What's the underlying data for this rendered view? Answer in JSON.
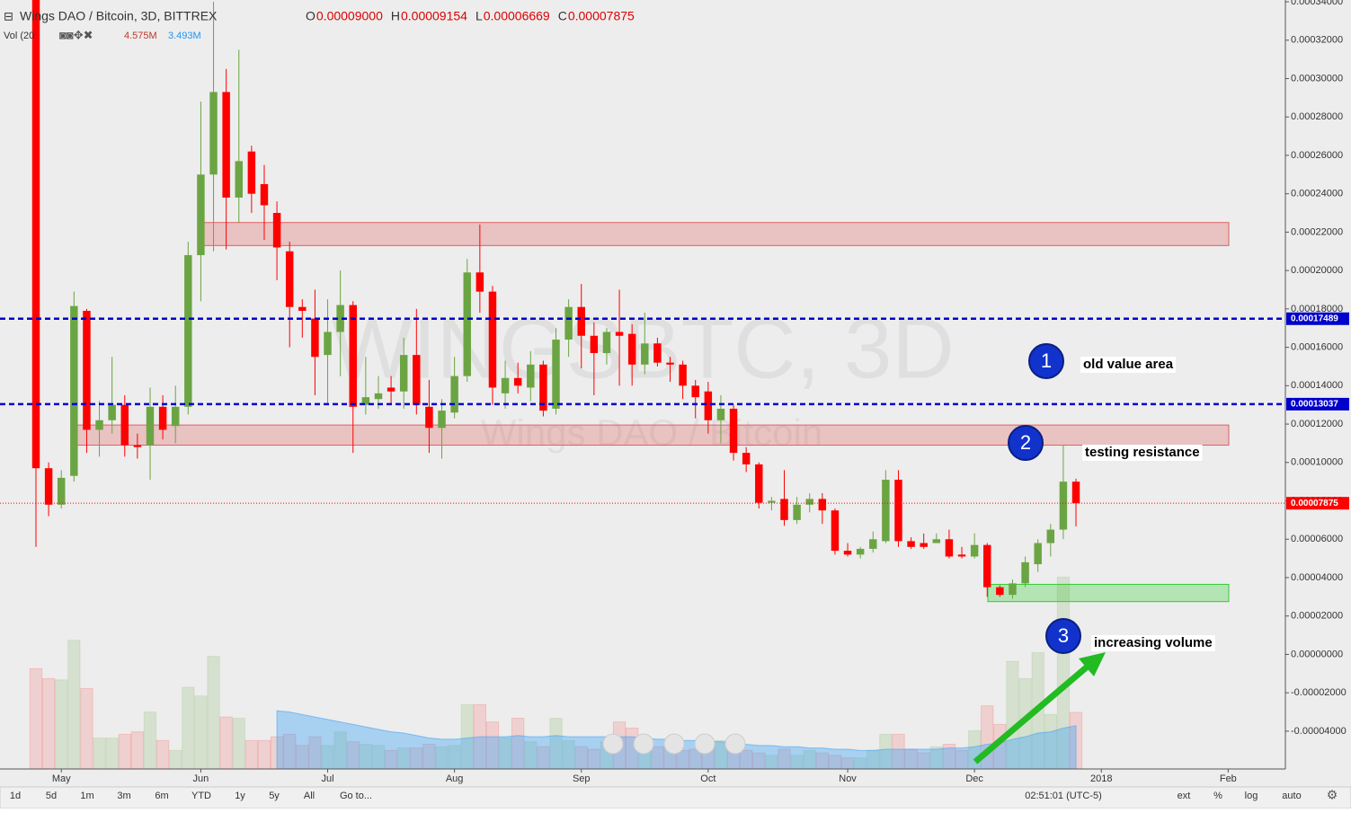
{
  "chart_data": {
    "type": "candlestick",
    "title": "Wings DAO / Bitcoin, 3D, BITTREX",
    "ohlc_header": [
      {
        "key": "O",
        "value": "0.00009000"
      },
      {
        "key": "H",
        "value": "0.00009154"
      },
      {
        "key": "L",
        "value": "0.00006669"
      },
      {
        "key": "C",
        "value": "0.00007875"
      }
    ],
    "volume_header": {
      "label": "Vol (20",
      "values": [
        "4.575M",
        "3.493M"
      ]
    },
    "watermark": [
      "WINGSBTC, 3D",
      "Wings DAO / Bitcoin"
    ],
    "categories": [
      null,
      null,
      "May",
      null,
      null,
      null,
      null,
      null,
      null,
      null,
      null,
      null,
      null,
      "Jun",
      null,
      null,
      null,
      null,
      null,
      null,
      null,
      null,
      null,
      "Jul",
      null,
      null,
      null,
      null,
      null,
      null,
      null,
      null,
      null,
      "Aug",
      null,
      null,
      null,
      null,
      null,
      null,
      null,
      null,
      null,
      "Sep",
      null,
      null,
      null,
      null,
      null,
      null,
      null,
      null,
      null,
      "Oct",
      null,
      null,
      null,
      null,
      null,
      null,
      null,
      null,
      null,
      null,
      "Nov",
      null,
      null,
      null,
      null,
      null,
      null,
      null,
      null,
      null,
      "Dec",
      null,
      null,
      null,
      null,
      null,
      null,
      null,
      null,
      null,
      "2018",
      null,
      null,
      null,
      null,
      null,
      null,
      null,
      null,
      null,
      "Feb",
      null
    ],
    "open": [
      0.0004,
      9.7e-05,
      7.8e-05,
      9.3e-05,
      0.000179,
      0.000117,
      0.000122,
      0.00013,
      0.000109,
      0.000109,
      0.000129,
      0.000119,
      0.000129,
      0.000208,
      0.00025,
      0.000293,
      0.000238,
      0.000262,
      0.000245,
      0.00023,
      0.00021,
      0.000181,
      0.000175,
      0.000156,
      0.000168,
      0.000182,
      0.00013,
      0.000133,
      0.000139,
      0.000137,
      0.000156,
      0.000129,
      0.000118,
      0.000126,
      0.000145,
      0.000199,
      0.000189,
      0.000136,
      0.000144,
      0.000139,
      0.000151,
      0.000128,
      0.000164,
      0.000181,
      0.000166,
      0.000157,
      0.000168,
      0.000167,
      0.000151,
      0.000162,
      0.000152,
      0.000151,
      0.00014,
      0.000137,
      0.000122,
      0.000128,
      0.000105,
      9.9e-05,
      7.9e-05,
      8.1e-05,
      7e-05,
      7.8e-05,
      8.1e-05,
      7.5e-05,
      5.4e-05,
      5.2e-05,
      5.5e-05,
      5.9e-05,
      9.1e-05,
      5.9e-05,
      5.8e-05,
      5.8e-05,
      6e-05,
      5.2e-05,
      5.1e-05,
      5.7e-05,
      3.5e-05,
      3.1e-05,
      3.7e-05,
      4.7e-05,
      5.8e-05,
      6.5e-05,
      9e-05,
      null,
      null,
      null,
      null,
      null,
      null,
      null,
      null,
      null,
      null,
      null,
      null,
      null
    ],
    "high": [
      0.0004,
      0.0001,
      9.6e-05,
      0.000189,
      0.00018,
      0.000132,
      0.000155,
      0.000135,
      0.000115,
      0.000139,
      0.000135,
      0.00014,
      0.000215,
      0.000288,
      0.00034,
      0.000305,
      0.000315,
      0.000265,
      0.000255,
      0.000236,
      0.000215,
      0.000185,
      0.00019,
      0.000185,
      0.0002,
      0.000184,
      0.000155,
      0.000145,
      0.000145,
      0.000165,
      0.00018,
      0.000143,
      0.000133,
      0.000155,
      0.000206,
      0.000224,
      0.000192,
      0.000153,
      0.000152,
      0.000158,
      0.000153,
      0.00017,
      0.000185,
      0.000193,
      0.000173,
      0.00017,
      0.00019,
      0.000172,
      0.000178,
      0.000165,
      0.000155,
      0.000153,
      0.000143,
      0.000142,
      0.000135,
      0.00013,
      0.000108,
      0.0001,
      8.2e-05,
      9.6e-05,
      8.2e-05,
      8.4e-05,
      8.4e-05,
      7.6e-05,
      5.8e-05,
      5.6e-05,
      6.4e-05,
      9.6e-05,
      9.6e-05,
      6.1e-05,
      6.3e-05,
      6.3e-05,
      6.5e-05,
      5.6e-05,
      6.3e-05,
      5.8e-05,
      3.6e-05,
      3.9e-05,
      5.1e-05,
      6e-05,
      6.8e-05,
      0.000109,
      9.154e-05,
      null,
      null,
      null,
      null,
      null,
      null,
      null,
      null,
      null,
      null,
      null,
      null,
      null
    ],
    "low": [
      5.6e-05,
      7.2e-05,
      7.6e-05,
      9e-05,
      0.000105,
      0.000103,
      0.000115,
      0.000103,
      0.000102,
      9.1e-05,
      0.000112,
      0.00011,
      0.000125,
      0.000184,
      0.00021,
      0.000211,
      0.000225,
      0.00023,
      0.000216,
      0.000195,
      0.00016,
      0.000165,
      0.000135,
      0.00013,
      0.000145,
      0.000105,
      0.000125,
      0.000128,
      0.00013,
      0.000128,
      0.000125,
      0.000105,
      0.000102,
      0.000123,
      0.000142,
      0.000178,
      0.00013,
      0.000128,
      0.000136,
      0.000132,
      0.000124,
      0.000125,
      0.000155,
      0.000149,
      0.000135,
      0.000151,
      0.00014,
      0.00014,
      0.000146,
      0.00015,
      0.000142,
      0.000133,
      0.000123,
      0.000115,
      0.00011,
      0.000101,
      9.5e-05,
      7.6e-05,
      7.5e-05,
      6.7e-05,
      6.8e-05,
      7.4e-05,
      6.8e-05,
      5.2e-05,
      5.1e-05,
      5e-05,
      5.3e-05,
      5.8e-05,
      5.6e-05,
      5.5e-05,
      5.5e-05,
      5.8e-05,
      5e-05,
      5e-05,
      5e-05,
      3e-05,
      3e-05,
      2.9e-05,
      3.5e-05,
      4.3e-05,
      5.1e-05,
      6e-05,
      6.669e-05,
      null,
      null,
      null,
      null,
      null,
      null,
      null,
      null,
      null,
      null,
      null,
      null,
      null
    ],
    "close": [
      9.7e-05,
      7.8e-05,
      9.2e-05,
      0.0001815,
      0.000117,
      0.000122,
      0.00013,
      0.000109,
      0.000108,
      0.000129,
      0.000117,
      0.000129,
      0.000208,
      0.00025,
      0.000293,
      0.000238,
      0.000257,
      0.00024,
      0.000234,
      0.000212,
      0.000181,
      0.000179,
      0.000155,
      0.000168,
      0.000182,
      0.000129,
      0.000134,
      0.000136,
      0.000137,
      0.000156,
      0.00013,
      0.000118,
      0.000127,
      0.000145,
      0.000199,
      0.000189,
      0.000139,
      0.000144,
      0.00014,
      0.000151,
      0.000127,
      0.000164,
      0.000181,
      0.000166,
      0.000157,
      0.000168,
      0.000166,
      0.000151,
      0.000162,
      0.000152,
      0.000151,
      0.00014,
      0.000134,
      0.000122,
      0.000128,
      0.000105,
      9.9e-05,
      7.9e-05,
      8e-05,
      7e-05,
      7.8e-05,
      8.1e-05,
      7.5e-05,
      5.4e-05,
      5.2e-05,
      5.5e-05,
      6e-05,
      9.1e-05,
      5.9e-05,
      5.6e-05,
      5.6e-05,
      6e-05,
      5.1e-05,
      5.1e-05,
      5.7e-05,
      3.5e-05,
      3.1e-05,
      3.7e-05,
      4.8e-05,
      5.8e-05,
      6.5e-05,
      9e-05,
      7.875e-05,
      null,
      null,
      null,
      null,
      null,
      null,
      null,
      null,
      null,
      null,
      null,
      null,
      null
    ],
    "volume": [
      8.1,
      7.3,
      7.2,
      10.4,
      6.5,
      2.5,
      2.5,
      2.8,
      3.0,
      4.6,
      2.3,
      1.5,
      6.6,
      5.9,
      9.1,
      4.2,
      4.1,
      2.3,
      2.3,
      2.6,
      2.8,
      1.9,
      2.6,
      1.9,
      3.0,
      2.2,
      2.0,
      1.9,
      1.5,
      1.7,
      1.7,
      2.0,
      1.8,
      1.9,
      5.2,
      5.2,
      3.8,
      2.5,
      4.1,
      2.2,
      1.8,
      4.1,
      2.3,
      1.8,
      1.6,
      2.2,
      3.8,
      3.3,
      2.2,
      1.8,
      1.7,
      1.5,
      1.6,
      2.0,
      2.3,
      1.8,
      1.5,
      1.3,
      1.1,
      1.6,
      1.1,
      1.5,
      1.3,
      1.1,
      0.9,
      0.9,
      1.5,
      2.8,
      2.8,
      1.6,
      1.3,
      1.8,
      2.0,
      1.5,
      3.1,
      5.1,
      3.6,
      8.7,
      7.3,
      9.4,
      4.4,
      15.5,
      4.575,
      null,
      null,
      null,
      null,
      null,
      null,
      null,
      null,
      null,
      null,
      null,
      null,
      null
    ],
    "volume_ma": [
      null,
      null,
      null,
      null,
      null,
      null,
      null,
      null,
      null,
      null,
      null,
      null,
      null,
      null,
      null,
      null,
      null,
      null,
      null,
      4.7,
      4.6,
      4.4,
      4.2,
      4.0,
      3.8,
      3.6,
      3.4,
      3.2,
      3.0,
      2.9,
      2.7,
      2.5,
      2.4,
      2.4,
      2.5,
      2.6,
      2.6,
      2.6,
      2.7,
      2.6,
      2.6,
      2.7,
      2.6,
      2.6,
      2.6,
      2.6,
      2.6,
      2.6,
      2.5,
      2.4,
      2.4,
      2.3,
      2.3,
      2.2,
      2.2,
      2.1,
      2.0,
      1.9,
      1.9,
      1.8,
      1.8,
      1.7,
      1.7,
      1.6,
      1.6,
      1.5,
      1.5,
      1.6,
      1.6,
      1.6,
      1.6,
      1.6,
      1.7,
      1.7,
      1.8,
      2.0,
      2.1,
      2.4,
      2.6,
      2.9,
      3.0,
      3.3,
      3.493,
      null,
      null,
      null,
      null,
      null,
      null,
      null,
      null,
      null,
      null,
      null,
      null,
      null
    ],
    "up_color": "#6ba543",
    "down_color": "#ff0000",
    "ylim": [
      -5.97e-05,
      0.00034
    ],
    "vol_ylim": [
      0,
      16.4
    ],
    "yticks": [
      {
        "value": 0.00034,
        "label": "0.00034000"
      },
      {
        "value": 0.00032,
        "label": "0.00032000"
      },
      {
        "value": 0.0003,
        "label": "0.00030000"
      },
      {
        "value": 0.00028,
        "label": "0.00028000"
      },
      {
        "value": 0.00026,
        "label": "0.00026000"
      },
      {
        "value": 0.00024,
        "label": "0.00024000"
      },
      {
        "value": 0.00022,
        "label": "0.00022000"
      },
      {
        "value": 0.0002,
        "label": "0.00020000"
      },
      {
        "value": 0.00018,
        "label": "0.00018000"
      },
      {
        "value": 0.00016,
        "label": "0.00016000"
      },
      {
        "value": 0.00014,
        "label": "0.00014000"
      },
      {
        "value": 0.00012,
        "label": "0.00012000"
      },
      {
        "value": 0.0001,
        "label": "0.00010000"
      },
      {
        "value": 8e-05,
        "label": "0.00008000"
      },
      {
        "value": 6e-05,
        "label": "0.00006000"
      },
      {
        "value": 4e-05,
        "label": "0.00004000"
      },
      {
        "value": 2e-05,
        "label": "0.00002000"
      },
      {
        "value": 0,
        "label": "0.00000000"
      },
      {
        "value": -2e-05,
        "label": "-0.00002000"
      },
      {
        "value": -4e-05,
        "label": "-0.00004000"
      }
    ],
    "grid": false,
    "levels": [
      {
        "value": 0.00017489,
        "label": "0.00017489",
        "color": "#0000cc"
      },
      {
        "value": 0.00013037,
        "label": "0.00013037",
        "color": "#0000cc"
      }
    ],
    "last_price": {
      "value": 7.875e-05,
      "label": "0.00007875",
      "color": "#ff0000"
    },
    "zones": [
      {
        "low": 0.000213,
        "high": 0.000225,
        "color": "#e06060"
      },
      {
        "low": 0.000109,
        "high": 0.0001195,
        "color": "#e06060"
      },
      {
        "low": 2.75e-05,
        "high": 3.65e-05,
        "color": "#33cc33"
      }
    ],
    "annotations": [
      {
        "number": "1",
        "text": "old value area"
      },
      {
        "number": "2",
        "text": "testing resistance"
      },
      {
        "number": "3",
        "text": "increasing volume"
      }
    ],
    "toolbar": {
      "ranges": [
        "1d",
        "5d",
        "1m",
        "3m",
        "6m",
        "YTD",
        "1y",
        "5y",
        "All",
        "Go to..."
      ],
      "time": "02:51:01 (UTC-5)",
      "options": [
        "ext",
        "%",
        "log",
        "auto"
      ]
    }
  }
}
